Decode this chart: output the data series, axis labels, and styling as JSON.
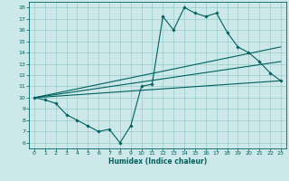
{
  "title": "",
  "xlabel": "Humidex (Indice chaleur)",
  "ylabel": "",
  "bg_color": "#cce8e8",
  "line_color": "#006060",
  "grid_color": "#99cccc",
  "xlim": [
    -0.5,
    23.5
  ],
  "ylim": [
    5.5,
    18.5
  ],
  "xticks": [
    0,
    1,
    2,
    3,
    4,
    5,
    6,
    7,
    8,
    9,
    10,
    11,
    12,
    13,
    14,
    15,
    16,
    17,
    18,
    19,
    20,
    21,
    22,
    23
  ],
  "yticks": [
    6,
    7,
    8,
    9,
    10,
    11,
    12,
    13,
    14,
    15,
    16,
    17,
    18
  ],
  "line1_x": [
    0,
    1,
    2,
    3,
    4,
    5,
    6,
    7,
    8,
    9,
    10,
    11,
    12,
    13,
    14,
    15,
    16,
    17,
    18,
    19,
    20,
    21,
    22,
    23
  ],
  "line1_y": [
    10.0,
    9.8,
    9.5,
    8.5,
    8.0,
    7.5,
    7.0,
    7.2,
    6.0,
    7.5,
    11.0,
    11.2,
    17.2,
    16.0,
    18.0,
    17.5,
    17.2,
    17.5,
    15.8,
    14.5,
    14.0,
    13.2,
    12.2,
    11.5
  ],
  "line2_x": [
    0,
    23
  ],
  "line2_y": [
    10.0,
    14.5
  ],
  "line3_x": [
    0,
    23
  ],
  "line3_y": [
    10.0,
    13.2
  ],
  "line4_x": [
    0,
    23
  ],
  "line4_y": [
    10.0,
    11.5
  ]
}
